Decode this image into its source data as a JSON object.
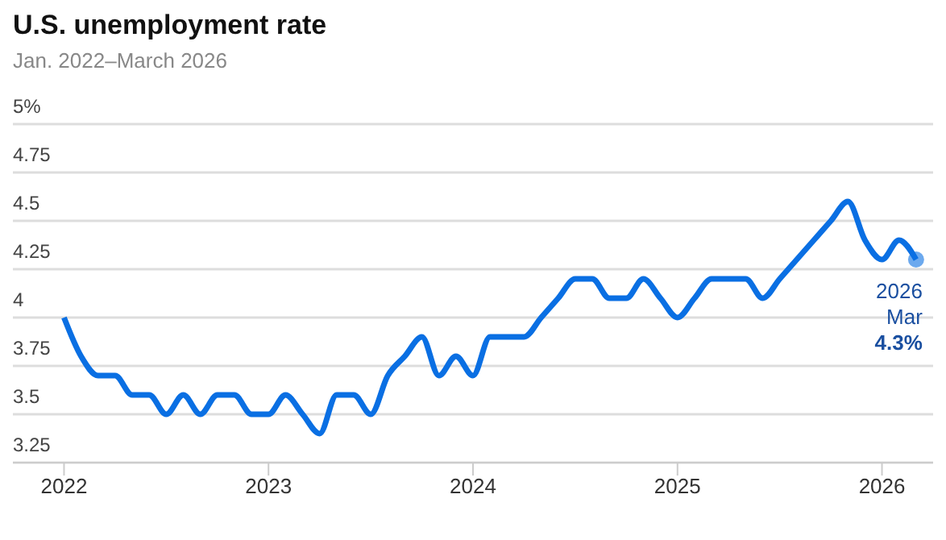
{
  "chart_data": {
    "type": "line",
    "title": "U.S. unemployment rate",
    "subtitle": "Jan. 2022–March 2026",
    "x": [
      "2022-01",
      "2022-02",
      "2022-03",
      "2022-04",
      "2022-05",
      "2022-06",
      "2022-07",
      "2022-08",
      "2022-09",
      "2022-10",
      "2022-11",
      "2022-12",
      "2023-01",
      "2023-02",
      "2023-03",
      "2023-04",
      "2023-05",
      "2023-06",
      "2023-07",
      "2023-08",
      "2023-09",
      "2023-10",
      "2023-11",
      "2023-12",
      "2024-01",
      "2024-02",
      "2024-03",
      "2024-04",
      "2024-05",
      "2024-06",
      "2024-07",
      "2024-08",
      "2024-09",
      "2024-10",
      "2024-11",
      "2024-12",
      "2025-01",
      "2025-02",
      "2025-03",
      "2025-04",
      "2025-05",
      "2025-06",
      "2025-07",
      "2025-08",
      "2025-09",
      "2025-10",
      "2025-11",
      "2025-12",
      "2026-01",
      "2026-02",
      "2026-03"
    ],
    "series": [
      {
        "color": "#0a6fe3",
        "values": [
          4.0,
          3.8,
          3.7,
          3.7,
          3.6,
          3.6,
          3.5,
          3.6,
          3.5,
          3.6,
          3.6,
          3.5,
          3.5,
          3.6,
          3.5,
          3.4,
          3.6,
          3.6,
          3.5,
          3.7,
          3.8,
          3.9,
          3.7,
          3.8,
          3.7,
          3.9,
          3.9,
          3.9,
          4.0,
          4.1,
          4.2,
          4.2,
          4.1,
          4.1,
          4.2,
          4.1,
          4.0,
          4.1,
          4.2,
          4.2,
          4.2,
          4.1,
          4.2,
          4.3,
          4.4,
          4.5,
          4.6,
          4.4,
          4.3,
          4.4,
          4.3
        ]
      }
    ],
    "xlim": [
      "2021-10",
      "2026-04"
    ],
    "xticks": [
      "2022",
      "2023",
      "2024",
      "2025",
      "2026"
    ],
    "ylim": [
      3.25,
      5
    ],
    "yticks": [
      3.25,
      3.5,
      3.75,
      4,
      4.25,
      4.5,
      4.75,
      {
        "value": 5,
        "label": "5%"
      }
    ],
    "grid": "y",
    "marker": "none",
    "line_style": "solid",
    "annotations": [
      {
        "text": "2026\nMar\n4.3%",
        "x": "2026-03",
        "y": 4.3
      }
    ]
  }
}
